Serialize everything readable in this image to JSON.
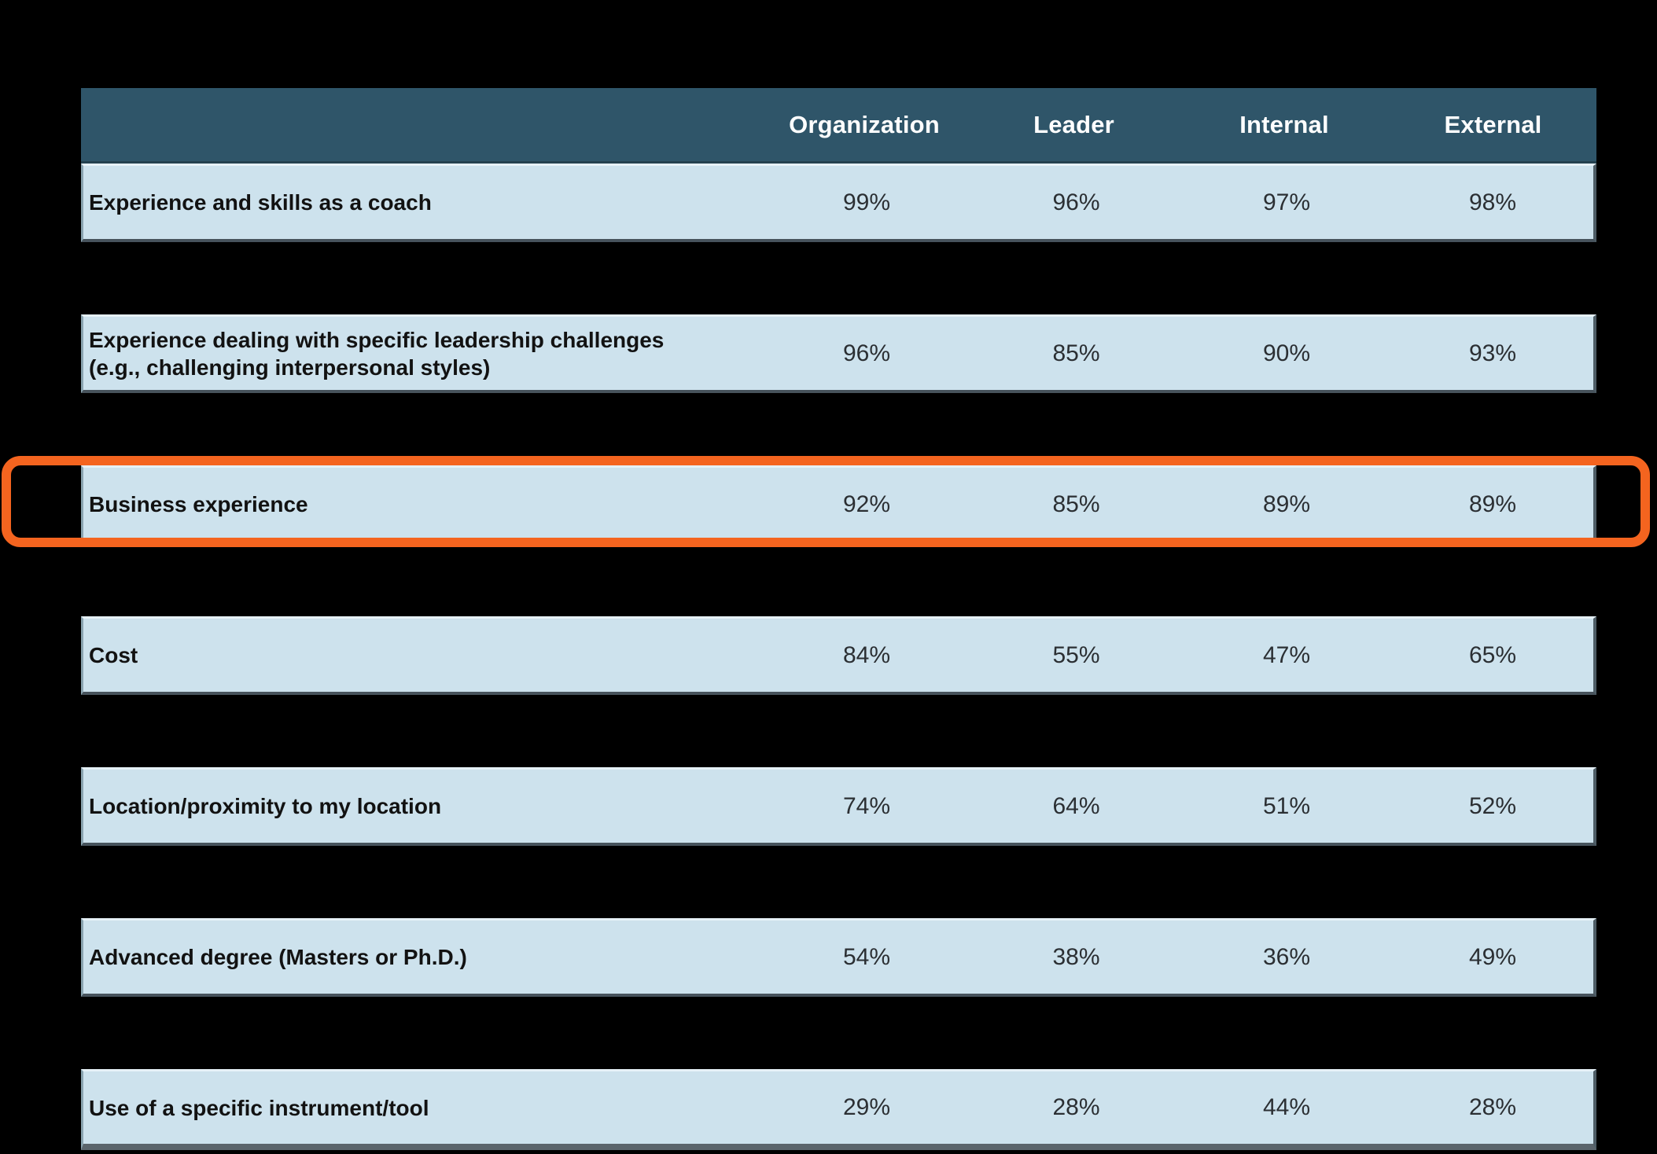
{
  "table": {
    "columns": [
      "Organization",
      "Leader",
      "Internal",
      "External"
    ],
    "rows": [
      {
        "label": "Experience and skills as a coach",
        "values": [
          "99%",
          "96%",
          "97%",
          "98%"
        ],
        "highlighted": false
      },
      {
        "label": "Experience dealing with specific leadership challenges (e.g., challenging interpersonal styles)",
        "values": [
          "96%",
          "85%",
          "90%",
          "93%"
        ],
        "highlighted": false
      },
      {
        "label": "Business experience",
        "values": [
          "92%",
          "85%",
          "89%",
          "89%"
        ],
        "highlighted": true
      },
      {
        "label": "Cost",
        "values": [
          "84%",
          "55%",
          "47%",
          "65%"
        ],
        "highlighted": false
      },
      {
        "label": "Location/proximity to my location",
        "values": [
          "74%",
          "64%",
          "51%",
          "52%"
        ],
        "highlighted": false
      },
      {
        "label": "Advanced degree (Masters or Ph.D.)",
        "values": [
          "54%",
          "38%",
          "36%",
          "49%"
        ],
        "highlighted": false
      },
      {
        "label": "Use of a specific instrument/tool",
        "values": [
          "29%",
          "28%",
          "44%",
          "28%"
        ],
        "highlighted": false
      }
    ]
  },
  "colors": {
    "background": "#000000",
    "header_bg": "#2F5569",
    "header_text": "#FFFFFF",
    "row_bg": "#CDE2ED",
    "row_text": "#121212",
    "highlight_border": "#F4641F"
  },
  "chart_data": {
    "type": "table",
    "title": "",
    "columns": [
      "Organization",
      "Leader",
      "Internal",
      "External"
    ],
    "units": "%",
    "rows": [
      {
        "label": "Experience and skills as a coach",
        "values": [
          99,
          96,
          97,
          98
        ]
      },
      {
        "label": "Experience dealing with specific leadership challenges (e.g., challenging interpersonal styles)",
        "values": [
          96,
          85,
          90,
          93
        ]
      },
      {
        "label": "Business experience",
        "values": [
          92,
          85,
          89,
          89
        ],
        "highlighted": true
      },
      {
        "label": "Cost",
        "values": [
          84,
          55,
          47,
          65
        ]
      },
      {
        "label": "Location/proximity to my location",
        "values": [
          74,
          64,
          51,
          52
        ]
      },
      {
        "label": "Advanced degree (Masters or Ph.D.)",
        "values": [
          54,
          38,
          36,
          49
        ]
      },
      {
        "label": "Use of a specific instrument/tool",
        "values": [
          29,
          28,
          44,
          28
        ]
      }
    ],
    "annotation": "Business experience row is outlined with an orange rounded rectangle"
  }
}
